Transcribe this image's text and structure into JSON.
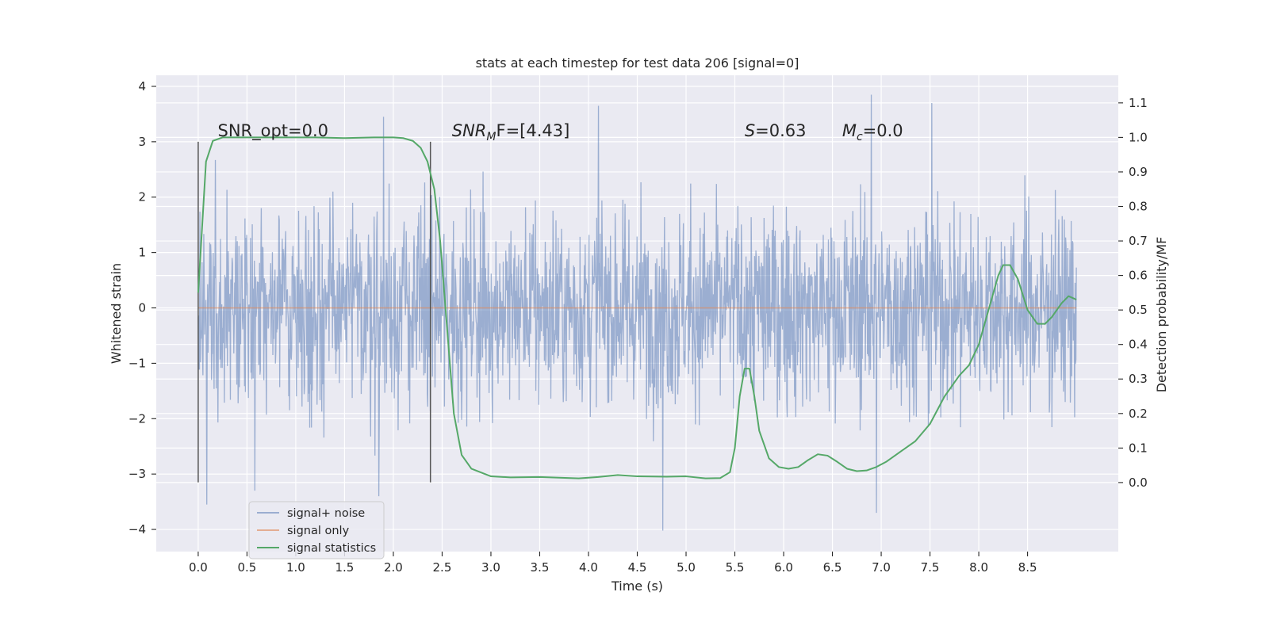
{
  "chart_data": {
    "type": "line",
    "title": "stats at each timestep for test data 206 [signal=0]",
    "xlabel": "Time (s)",
    "ylabel": "Whitened strain",
    "ylabel_right": "Detection probability/MF",
    "xlim": [
      -0.43,
      9.43
    ],
    "ylim": [
      -4.4,
      4.2
    ],
    "ylim_right": [
      -0.2,
      1.18
    ],
    "x_ticks": [
      0.0,
      0.5,
      1.0,
      1.5,
      2.0,
      2.5,
      3.0,
      3.5,
      4.0,
      4.5,
      5.0,
      5.5,
      6.0,
      6.5,
      7.0,
      7.5,
      8.0,
      8.5
    ],
    "x_tick_labels": [
      "0.0",
      "0.5",
      "1.0",
      "1.5",
      "2.0",
      "2.5",
      "3.0",
      "3.5",
      "4.0",
      "4.5",
      "5.0",
      "5.5",
      "6.0",
      "6.5",
      "7.0",
      "7.5",
      "8.0",
      "8.5"
    ],
    "y_ticks": [
      -4,
      -3,
      -2,
      -1,
      0,
      1,
      2,
      3,
      4
    ],
    "y_tick_labels": [
      "−4",
      "−3",
      "−2",
      "−1",
      "0",
      "1",
      "2",
      "3",
      "4"
    ],
    "y_ticks_right": [
      0.0,
      0.1,
      0.2,
      0.3,
      0.4,
      0.5,
      0.6,
      0.7,
      0.8,
      0.9,
      1.0,
      1.1
    ],
    "y_tick_labels_right": [
      "0.0",
      "0.1",
      "0.2",
      "0.3",
      "0.4",
      "0.5",
      "0.6",
      "0.7",
      "0.8",
      "0.9",
      "1.0",
      "1.1"
    ],
    "grid": true,
    "legend_position": "lower-left",
    "vertical_lines": [
      {
        "x": 0.0,
        "ymin": -3.15,
        "ymax": 3.0
      },
      {
        "x": 2.38,
        "ymin": -3.15,
        "ymax": 3.0
      }
    ],
    "annotations": [
      {
        "x": 0.2,
        "y": 3.1,
        "prefix": "SNR_opt=0.0",
        "sub": "",
        "suffix": "",
        "italic": ""
      },
      {
        "x": 2.6,
        "y": 3.1,
        "prefix": "",
        "italic": "SNR",
        "sub": "M",
        "suffix": "F=[4.43]"
      },
      {
        "x": 5.6,
        "y": 3.1,
        "prefix": "",
        "italic": "S",
        "sub": "",
        "suffix": "=0.63"
      },
      {
        "x": 6.6,
        "y": 3.1,
        "prefix": "",
        "italic": "M",
        "sub": "c",
        "suffix": "=0.0"
      }
    ],
    "series": [
      {
        "name": "signal+ noise",
        "color": "#4c72b0",
        "axis": "left",
        "kind": "noise",
        "x_range": [
          0.0,
          9.0
        ],
        "band": [
          -1.2,
          1.2
        ],
        "notable_extrema": [
          [
            0.09,
            -3.55
          ],
          [
            4.76,
            -4.02
          ],
          [
            6.9,
            3.85
          ],
          [
            7.52,
            3.7
          ],
          [
            4.1,
            3.65
          ],
          [
            1.9,
            3.45
          ],
          [
            0.58,
            -3.3
          ],
          [
            1.85,
            -3.4
          ],
          [
            6.95,
            -3.7
          ]
        ]
      },
      {
        "name": "signal only",
        "color": "#dd8452",
        "axis": "left",
        "kind": "flat",
        "x": [
          0.0,
          9.0
        ],
        "y": [
          0.0,
          0.0
        ]
      },
      {
        "name": "signal statistics",
        "color": "#55a868",
        "axis": "right",
        "kind": "line",
        "x": [
          0.0,
          0.08,
          0.15,
          0.25,
          0.4,
          0.8,
          1.2,
          1.5,
          1.8,
          2.0,
          2.1,
          2.2,
          2.28,
          2.35,
          2.42,
          2.48,
          2.55,
          2.62,
          2.7,
          2.8,
          3.0,
          3.2,
          3.5,
          3.9,
          4.1,
          4.3,
          4.5,
          4.8,
          5.0,
          5.2,
          5.35,
          5.45,
          5.5,
          5.55,
          5.6,
          5.65,
          5.7,
          5.75,
          5.85,
          5.95,
          6.05,
          6.15,
          6.25,
          6.35,
          6.45,
          6.55,
          6.65,
          6.75,
          6.85,
          6.95,
          7.05,
          7.2,
          7.35,
          7.5,
          7.65,
          7.8,
          7.9,
          8.0,
          8.1,
          8.2,
          8.25,
          8.32,
          8.4,
          8.5,
          8.6,
          8.68,
          8.75,
          8.85,
          8.92,
          9.0
        ],
        "y": [
          0.55,
          0.93,
          0.99,
          1.0,
          1.0,
          1.0,
          1.0,
          0.998,
          1.0,
          1.0,
          0.998,
          0.99,
          0.97,
          0.93,
          0.85,
          0.7,
          0.45,
          0.2,
          0.08,
          0.04,
          0.018,
          0.015,
          0.016,
          0.012,
          0.016,
          0.022,
          0.018,
          0.017,
          0.018,
          0.012,
          0.013,
          0.03,
          0.1,
          0.25,
          0.33,
          0.33,
          0.25,
          0.15,
          0.07,
          0.045,
          0.04,
          0.045,
          0.065,
          0.082,
          0.078,
          0.06,
          0.04,
          0.033,
          0.035,
          0.045,
          0.06,
          0.09,
          0.12,
          0.17,
          0.25,
          0.31,
          0.34,
          0.4,
          0.5,
          0.6,
          0.63,
          0.63,
          0.59,
          0.5,
          0.46,
          0.46,
          0.48,
          0.52,
          0.54,
          0.53
        ]
      }
    ]
  }
}
